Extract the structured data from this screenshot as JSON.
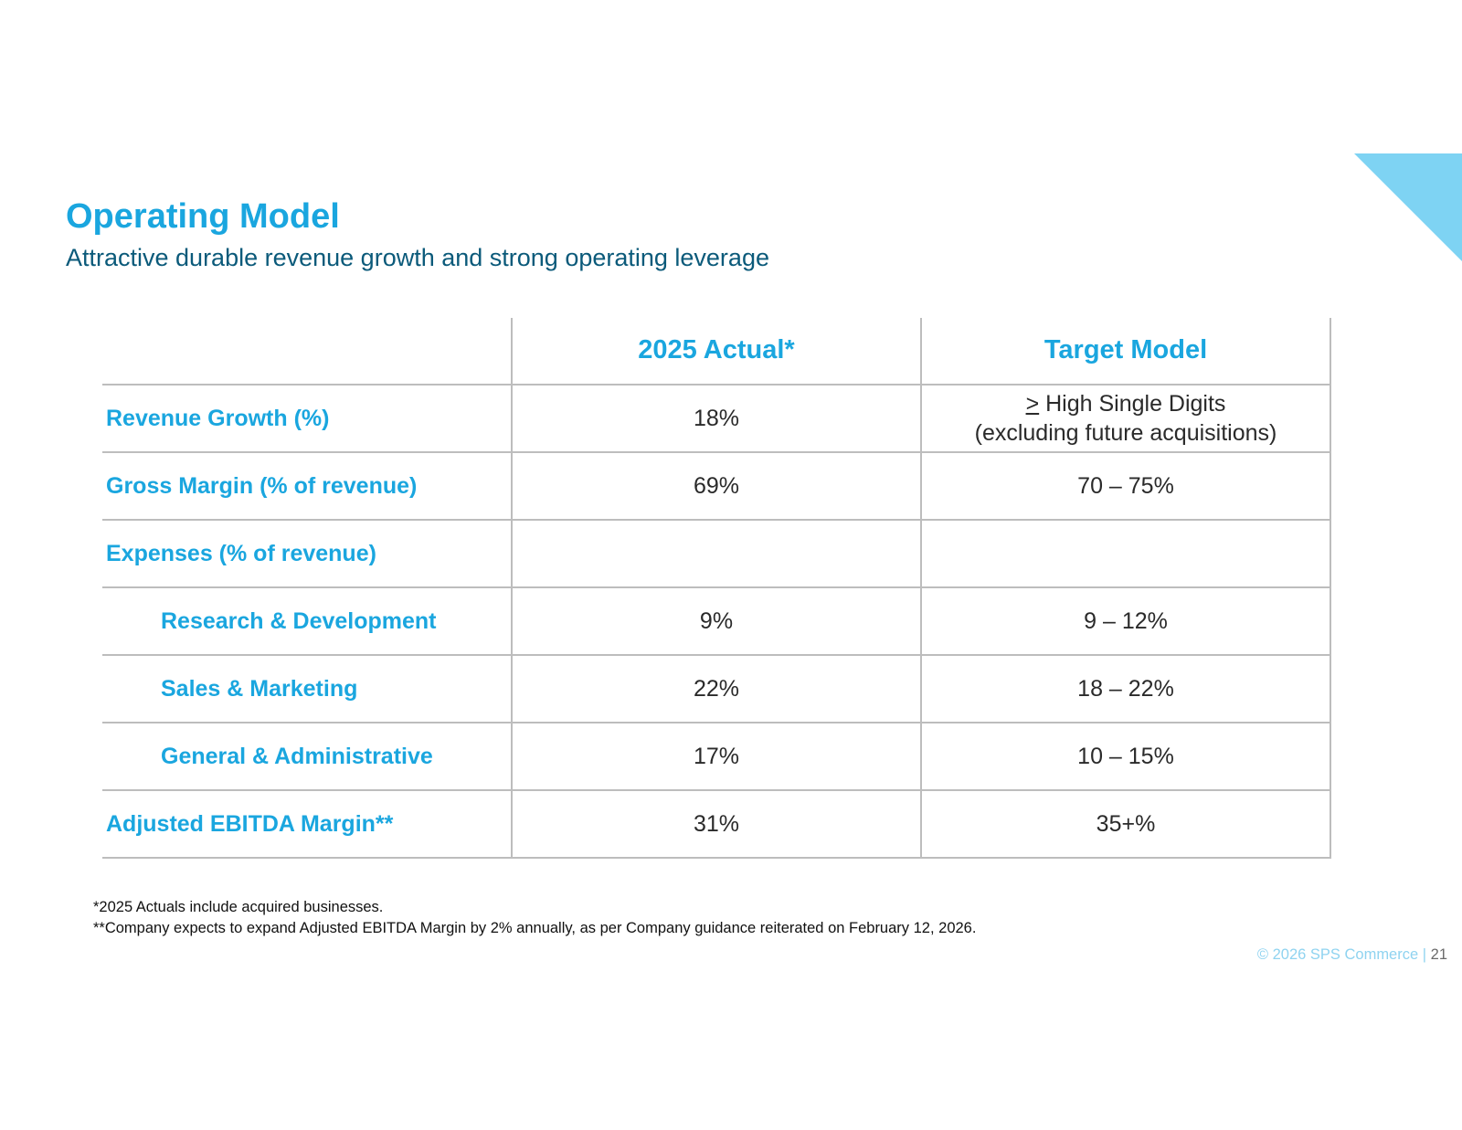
{
  "slide": {
    "title": "Operating Model",
    "subtitle": "Attractive durable revenue growth and strong operating leverage"
  },
  "table": {
    "headers": [
      "",
      "2025 Actual*",
      "Target Model"
    ],
    "rows": [
      {
        "label": "Revenue Growth (%)",
        "actual": "18%",
        "target_symbol": ">",
        "target_line1": " High Single Digits",
        "target_line2": "(excluding future acquisitions)"
      },
      {
        "label": "Gross Margin (% of revenue)",
        "actual": "69%",
        "target": "70 – 75%"
      },
      {
        "label": "Expenses (% of revenue)",
        "actual": "",
        "target": ""
      },
      {
        "label": "Research & Development",
        "actual": "9%",
        "target": "9 – 12%"
      },
      {
        "label": "Sales & Marketing",
        "actual": "22%",
        "target": "18 – 22%"
      },
      {
        "label": "General & Administrative",
        "actual": "17%",
        "target": "10 – 15%"
      },
      {
        "label": "Adjusted EBITDA Margin**",
        "actual": "31%",
        "target": "35+%"
      }
    ]
  },
  "footnotes": [
    "*2025 Actuals include acquired businesses.",
    "**Company expects to expand Adjusted EBITDA Margin by 2% annually, as per Company guidance reiterated on February 12, 2026."
  ],
  "footer": {
    "copyright": "© 2026 SPS Commerce",
    "separator": "|",
    "page_number": "21"
  },
  "colors": {
    "accent": "#1aa6df",
    "subtitle": "#0b5a7a",
    "corner_triangle": "#7ed3f3",
    "grid": "#bdbdbd"
  }
}
